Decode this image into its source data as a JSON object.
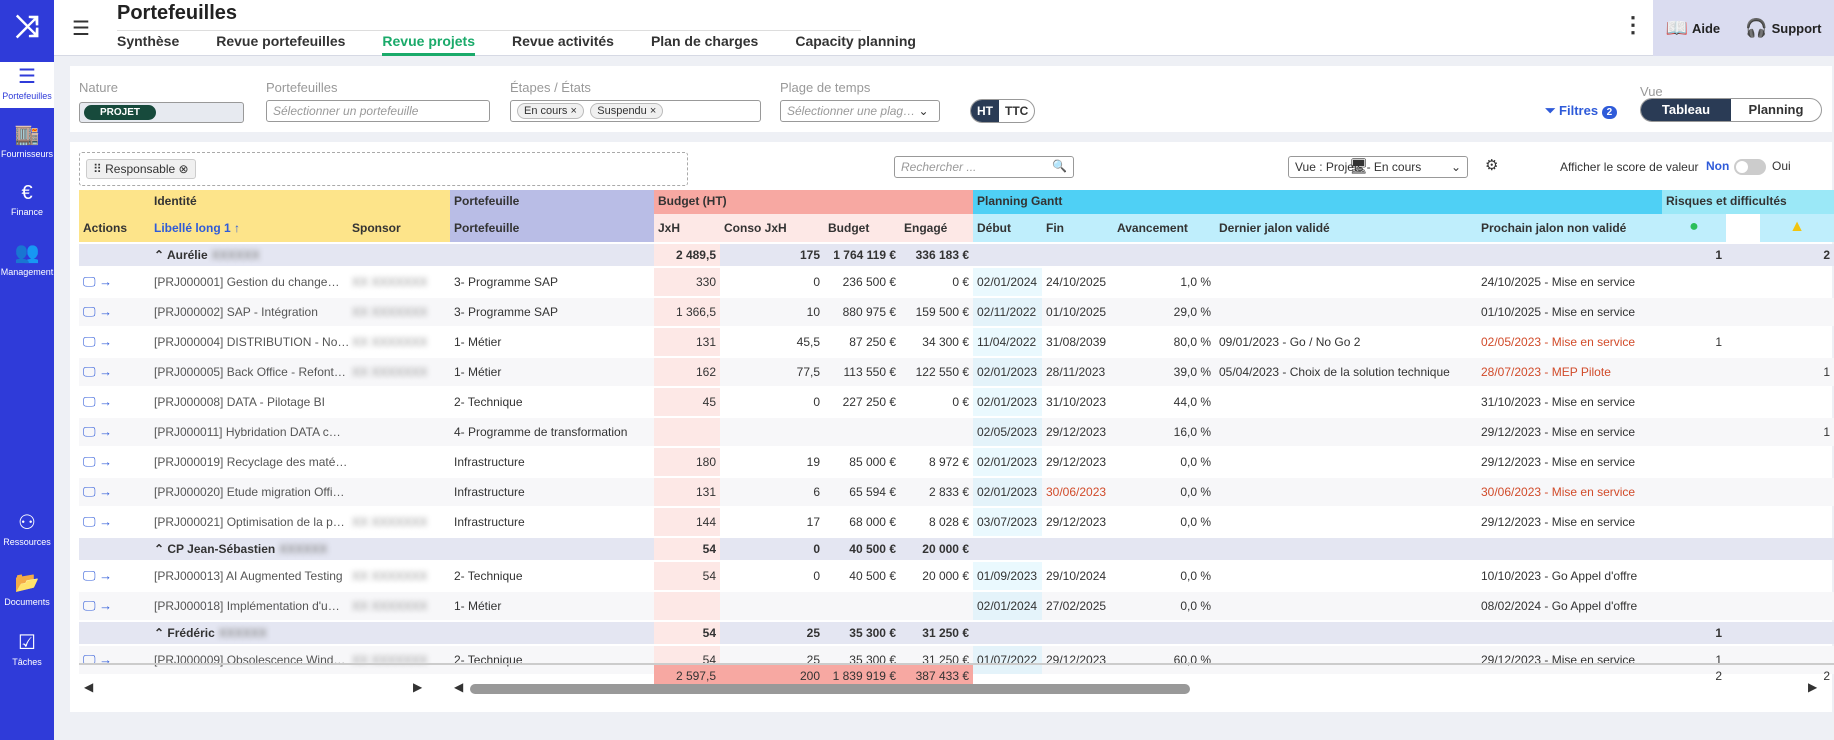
{
  "sidebar": [
    {
      "icon": "portefeuilles-icon",
      "label": "Portefeuilles"
    },
    {
      "icon": "fournisseurs-icon",
      "label": "Fournisseurs"
    },
    {
      "icon": "finance-icon",
      "label": "Finance"
    },
    {
      "icon": "management-icon",
      "label": "Management"
    },
    {
      "icon": "ressources-icon",
      "label": "Ressources"
    },
    {
      "icon": "documents-icon",
      "label": "Documents"
    },
    {
      "icon": "taches-icon",
      "label": "Tâches"
    }
  ],
  "header": {
    "title": "Portefeuilles",
    "tabs": [
      "Synthèse",
      "Revue portefeuilles",
      "Revue projets",
      "Revue activités",
      "Plan de charges",
      "Capacity planning"
    ],
    "active_tab": "Revue projets",
    "help": "Aide",
    "support": "Support"
  },
  "filters": {
    "nature_label": "Nature",
    "nature_value": "PROJET",
    "portefeuilles_label": "Portefeuilles",
    "portefeuilles_placeholder": "Sélectionner un portefeuille",
    "etapes_label": "Étapes / États",
    "etapes_chips": [
      "En cours",
      "Suspendu"
    ],
    "plage_label": "Plage de temps",
    "plage_placeholder": "Sélectionner une plag…",
    "ht": "HT",
    "ttc": "TTC",
    "filtres": "Filtres",
    "filtres_count": "2",
    "vue_label": "Vue",
    "vue_tableau": "Tableau",
    "vue_planning": "Planning"
  },
  "toolbar": {
    "group_chip": "Responsable",
    "search_placeholder": "Rechercher ...",
    "vue_select": "Vue : Projets - En cours",
    "score_label": "Afficher le score de valeur",
    "non": "Non",
    "oui": "Oui"
  },
  "groups_header": {
    "identite": "Identité",
    "portefeuille": "Portefeuille",
    "budget": "Budget (HT)",
    "gantt": "Planning Gantt",
    "risques": "Risques et difficultés"
  },
  "columns": {
    "actions": "Actions",
    "libelle": "Libellé long 1 ↑",
    "sponsor": "Sponsor",
    "portefeuille": "Portefeuille",
    "jxh": "JxH",
    "conso": "Conso JxH",
    "budget": "Budget",
    "engage": "Engagé",
    "debut": "Début",
    "fin": "Fin",
    "avancement": "Avancement",
    "dernier": "Dernier jalon validé",
    "prochain": "Prochain jalon non validé"
  },
  "rows": [
    {
      "type": "group",
      "name": "Aurélie",
      "jxh": "2 489,5",
      "conso": "175",
      "budget": "1 764 119 €",
      "engage": "336 183 €",
      "r1": "1",
      "r2": "2"
    },
    {
      "type": "row",
      "lib": "[PRJ000001] Gestion du change…",
      "pf": "3- Programme SAP",
      "jxh": "330",
      "conso": "0",
      "budget": "236 500 €",
      "engage": "0 €",
      "debut": "02/01/2024",
      "fin": "24/10/2025",
      "av": "1,0 %",
      "dernier": "",
      "prochain": "24/10/2025 - Mise en service",
      "r1": "",
      "r2": ""
    },
    {
      "type": "row",
      "lib": "[PRJ000002] SAP - Intégration",
      "pf": "3- Programme SAP",
      "jxh": "1 366,5",
      "conso": "10",
      "budget": "880 975 €",
      "engage": "159 500 €",
      "debut": "02/11/2022",
      "fin": "01/10/2025",
      "av": "29,0 %",
      "dernier": "",
      "prochain": "01/10/2025 - Mise en service",
      "r1": "",
      "r2": ""
    },
    {
      "type": "row",
      "lib": "[PRJ000004] DISTRIBUTION - No…",
      "pf": "1- Métier",
      "jxh": "131",
      "conso": "45,5",
      "budget": "87 250 €",
      "engage": "34 300 €",
      "debut": "11/04/2022",
      "fin": "31/08/2039",
      "av": "80,0 %",
      "dernier": "09/01/2023 - Go / No Go 2",
      "prochain": "02/05/2023 - Mise en service",
      "red": true,
      "r1": "1",
      "r2": ""
    },
    {
      "type": "row",
      "lib": "[PRJ000005] Back Office - Refont…",
      "pf": "1- Métier",
      "jxh": "162",
      "conso": "77,5",
      "budget": "113 550 €",
      "engage": "122 550 €",
      "debut": "02/01/2023",
      "fin": "28/11/2023",
      "av": "39,0 %",
      "dernier": "05/04/2023 - Choix de la solution technique",
      "prochain": "28/07/2023 - MEP Pilote",
      "red": true,
      "r1": "",
      "r2": "1"
    },
    {
      "type": "row",
      "lib": "[PRJ000008] DATA - Pilotage BI",
      "pf": "2- Technique",
      "jxh": "45",
      "conso": "0",
      "budget": "227 250 €",
      "engage": "0 €",
      "debut": "02/01/2023",
      "fin": "31/10/2023",
      "av": "44,0 %",
      "dernier": "",
      "prochain": "31/10/2023 - Mise en service",
      "r1": "",
      "r2": ""
    },
    {
      "type": "row",
      "lib": "[PRJ000011] Hybridation DATA c…",
      "pf": "4- Programme de transformation",
      "jxh": "",
      "conso": "",
      "budget": "",
      "engage": "",
      "debut": "02/05/2023",
      "fin": "29/12/2023",
      "av": "16,0 %",
      "dernier": "",
      "prochain": "29/12/2023 - Mise en service",
      "r1": "",
      "r2": "1"
    },
    {
      "type": "row",
      "lib": "[PRJ000019] Recyclage des maté…",
      "pf": "Infrastructure",
      "jxh": "180",
      "conso": "19",
      "budget": "85 000 €",
      "engage": "8 972 €",
      "debut": "02/01/2023",
      "fin": "29/12/2023",
      "av": "0,0 %",
      "dernier": "",
      "prochain": "29/12/2023 - Mise en service",
      "r1": "",
      "r2": ""
    },
    {
      "type": "row",
      "lib": "[PRJ000020] Etude migration Offi…",
      "pf": "Infrastructure",
      "jxh": "131",
      "conso": "6",
      "budget": "65 594 €",
      "engage": "2 833 €",
      "debut": "02/01/2023",
      "fin": "30/06/2023",
      "av": "0,0 %",
      "dernier": "",
      "prochain": "30/06/2023 - Mise en service",
      "red": true,
      "redfin": true,
      "r1": "",
      "r2": ""
    },
    {
      "type": "row",
      "lib": "[PRJ000021] Optimisation de la p…",
      "pf": "Infrastructure",
      "jxh": "144",
      "conso": "17",
      "budget": "68 000 €",
      "engage": "8 028 €",
      "debut": "03/07/2023",
      "fin": "29/12/2023",
      "av": "0,0 %",
      "dernier": "",
      "prochain": "29/12/2023 - Mise en service",
      "r1": "",
      "r2": ""
    },
    {
      "type": "group",
      "name": "CP Jean-Sébastien",
      "jxh": "54",
      "conso": "0",
      "budget": "40 500 €",
      "engage": "20 000 €",
      "r1": "",
      "r2": ""
    },
    {
      "type": "row",
      "lib": "[PRJ000013] AI Augmented Testing",
      "pf": "2- Technique",
      "jxh": "54",
      "conso": "0",
      "budget": "40 500 €",
      "engage": "20 000 €",
      "debut": "01/09/2023",
      "fin": "29/10/2024",
      "av": "0,0 %",
      "dernier": "",
      "prochain": "10/10/2023 - Go Appel d'offre",
      "r1": "",
      "r2": ""
    },
    {
      "type": "row",
      "lib": "[PRJ000018] Implémentation d'u…",
      "pf": "1- Métier",
      "jxh": "",
      "conso": "",
      "budget": "",
      "engage": "",
      "debut": "02/01/2024",
      "fin": "27/02/2025",
      "av": "0,0 %",
      "dernier": "",
      "prochain": "08/02/2024 - Go Appel d'offre",
      "r1": "",
      "r2": ""
    },
    {
      "type": "group",
      "name": "Frédéric",
      "jxh": "54",
      "conso": "25",
      "budget": "35 300 €",
      "engage": "31 250 €",
      "r1": "1",
      "r2": ""
    },
    {
      "type": "row",
      "lib": "[PRJ000009] Obsolescence Wind…",
      "pf": "2- Technique",
      "jxh": "54",
      "conso": "25",
      "budget": "35 300 €",
      "engage": "31 250 €",
      "debut": "01/07/2022",
      "fin": "29/12/2023",
      "av": "60,0 %",
      "dernier": "",
      "prochain": "29/12/2023 - Mise en service",
      "r1": "1",
      "r2": ""
    }
  ],
  "totals": {
    "jxh": "2 597,5",
    "conso": "200",
    "budget": "1 839 919 €",
    "engage": "387 433 €",
    "r1": "2",
    "r2": "2"
  },
  "colors": {
    "identite": "#fde48a",
    "identite_light": "#fff3c4",
    "portefeuille": "#b9bde6",
    "budget": "#f7a8a2",
    "budget_light": "#fde8e6",
    "gantt": "#4fd0f5",
    "gantt_light": "#bfeefc",
    "risques": "#9be8f7",
    "accent": "#2f3bd9"
  }
}
